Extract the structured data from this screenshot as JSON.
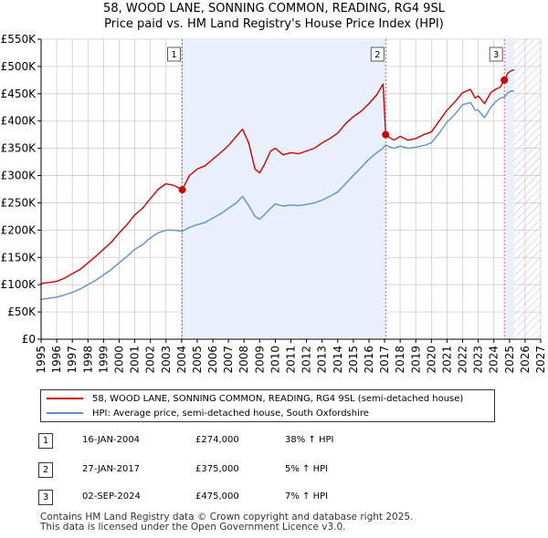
{
  "title_line1": "58, WOOD LANE, SONNING COMMON, READING, RG4 9SL",
  "title_line2": "Price paid vs. HM Land Registry's House Price Index (HPI)",
  "legend": {
    "property_label": "58, WOOD LANE, SONNING COMMON, READING, RG4 9SL (semi-detached house)",
    "hpi_label": "HPI: Average price, semi-detached house, South Oxfordshire"
  },
  "colors": {
    "property": "#cc0000",
    "hpi": "#5b8fd0",
    "shade": "#eaf0fb",
    "grid": "#cccccc"
  },
  "sales": [
    {
      "num": "1",
      "date": "16-JAN-2004",
      "price": "£274,000",
      "hpi": "38% ↑ HPI"
    },
    {
      "num": "2",
      "date": "27-JAN-2017",
      "price": "£375,000",
      "hpi": "5% ↑ HPI"
    },
    {
      "num": "3",
      "date": "02-SEP-2024",
      "price": "£475,000",
      "hpi": "7% ↑ HPI"
    }
  ],
  "footer_line1": "Contains HM Land Registry data © Crown copyright and database right 2025.",
  "footer_line2": "This data is licensed under the Open Government Licence v3.0.",
  "chart_data": {
    "type": "line",
    "title": "Price paid vs. HM Land Registry's House Price Index (HPI)",
    "xlabel": "",
    "ylabel": "",
    "xlim": [
      1995,
      2027
    ],
    "ylim": [
      0,
      550000
    ],
    "x_ticks": [
      "1995",
      "1996",
      "1997",
      "1998",
      "1999",
      "2000",
      "2001",
      "2002",
      "2003",
      "2004",
      "2005",
      "2006",
      "2007",
      "2008",
      "2009",
      "2010",
      "2011",
      "2012",
      "2013",
      "2014",
      "2015",
      "2016",
      "2017",
      "2018",
      "2019",
      "2020",
      "2021",
      "2022",
      "2023",
      "2024",
      "2025",
      "2026",
      "2027"
    ],
    "y_ticks": [
      {
        "value": 0,
        "label": "£0"
      },
      {
        "value": 50000,
        "label": "£50K"
      },
      {
        "value": 100000,
        "label": "£100K"
      },
      {
        "value": 150000,
        "label": "£150K"
      },
      {
        "value": 200000,
        "label": "£200K"
      },
      {
        "value": 250000,
        "label": "£250K"
      },
      {
        "value": 300000,
        "label": "£300K"
      },
      {
        "value": 350000,
        "label": "£350K"
      },
      {
        "value": 400000,
        "label": "£400K"
      },
      {
        "value": 450000,
        "label": "£450K"
      },
      {
        "value": 500000,
        "label": "£500K"
      },
      {
        "value": 550000,
        "label": "£550K"
      }
    ],
    "ownership_periods": [
      [
        2004.04,
        2017.07
      ],
      [
        2024.67,
        2025.3
      ]
    ],
    "future_region": [
      2025.3,
      2027
    ],
    "series": [
      {
        "name": "58, WOOD LANE, SONNING COMMON, READING, RG4 9SL (semi-detached house)",
        "x": [
          1995.0,
          1995.5,
          1996.0,
          1996.5,
          1997.0,
          1997.5,
          1998.0,
          1998.5,
          1999.0,
          1999.5,
          2000.0,
          2000.5,
          2001.0,
          2001.5,
          2002.0,
          2002.5,
          2003.0,
          2003.5,
          2004.04,
          2004.5,
          2005.0,
          2005.5,
          2006.0,
          2006.5,
          2007.0,
          2007.5,
          2007.9,
          2008.3,
          2008.7,
          2009.0,
          2009.3,
          2009.7,
          2010.0,
          2010.5,
          2011.0,
          2011.5,
          2012.0,
          2012.5,
          2013.0,
          2013.5,
          2014.0,
          2014.5,
          2015.0,
          2015.5,
          2016.0,
          2016.5,
          2016.9,
          2017.07,
          2017.3,
          2017.6,
          2018.0,
          2018.5,
          2019.0,
          2019.5,
          2020.0,
          2020.5,
          2021.0,
          2021.5,
          2022.0,
          2022.5,
          2022.8,
          2023.0,
          2023.4,
          2023.8,
          2024.1,
          2024.4,
          2024.67,
          2024.9,
          2025.1,
          2025.3
        ],
        "values": [
          102000,
          104000,
          106000,
          112000,
          120000,
          128000,
          140000,
          152000,
          165000,
          178000,
          195000,
          210000,
          228000,
          240000,
          258000,
          275000,
          285000,
          282000,
          274000,
          300000,
          312000,
          318000,
          330000,
          342000,
          355000,
          372000,
          385000,
          360000,
          312000,
          305000,
          320000,
          345000,
          350000,
          338000,
          342000,
          340000,
          345000,
          350000,
          360000,
          368000,
          378000,
          395000,
          408000,
          418000,
          432000,
          448000,
          468000,
          375000,
          370000,
          365000,
          372000,
          365000,
          368000,
          375000,
          380000,
          400000,
          420000,
          435000,
          452000,
          458000,
          442000,
          446000,
          432000,
          452000,
          458000,
          462000,
          475000,
          488000,
          492000,
          494000
        ]
      },
      {
        "name": "HPI: Average price, semi-detached house, South Oxfordshire",
        "x": [
          1995.0,
          1995.5,
          1996.0,
          1996.5,
          1997.0,
          1997.5,
          1998.0,
          1998.5,
          1999.0,
          1999.5,
          2000.0,
          2000.5,
          2001.0,
          2001.5,
          2002.0,
          2002.5,
          2003.0,
          2003.5,
          2004.04,
          2004.5,
          2005.0,
          2005.5,
          2006.0,
          2006.5,
          2007.0,
          2007.5,
          2007.9,
          2008.3,
          2008.7,
          2009.0,
          2009.3,
          2009.7,
          2010.0,
          2010.5,
          2011.0,
          2011.5,
          2012.0,
          2012.5,
          2013.0,
          2013.5,
          2014.0,
          2014.5,
          2015.0,
          2015.5,
          2016.0,
          2016.5,
          2016.9,
          2017.07,
          2017.3,
          2017.6,
          2018.0,
          2018.5,
          2019.0,
          2019.5,
          2020.0,
          2020.5,
          2021.0,
          2021.5,
          2022.0,
          2022.5,
          2022.8,
          2023.0,
          2023.4,
          2023.8,
          2024.1,
          2024.4,
          2024.67,
          2024.9,
          2025.1,
          2025.3
        ],
        "values": [
          73000,
          75000,
          77000,
          81000,
          86000,
          92000,
          100000,
          108000,
          118000,
          128000,
          140000,
          152000,
          165000,
          173000,
          186000,
          195000,
          200000,
          200000,
          198000,
          205000,
          210000,
          214000,
          222000,
          230000,
          240000,
          250000,
          262000,
          245000,
          225000,
          220000,
          228000,
          240000,
          248000,
          244000,
          246000,
          245000,
          247000,
          250000,
          255000,
          262000,
          270000,
          285000,
          300000,
          315000,
          330000,
          342000,
          350000,
          356000,
          353000,
          350000,
          354000,
          350000,
          352000,
          355000,
          360000,
          378000,
          398000,
          412000,
          430000,
          434000,
          420000,
          420000,
          406000,
          425000,
          435000,
          442000,
          444000,
          452000,
          455000,
          455000
        ]
      }
    ],
    "sale_points": [
      {
        "label": "1",
        "x": 2004.04,
        "value": 274000
      },
      {
        "label": "2",
        "x": 2017.07,
        "value": 375000
      },
      {
        "label": "3",
        "x": 2024.67,
        "value": 475000
      }
    ]
  }
}
